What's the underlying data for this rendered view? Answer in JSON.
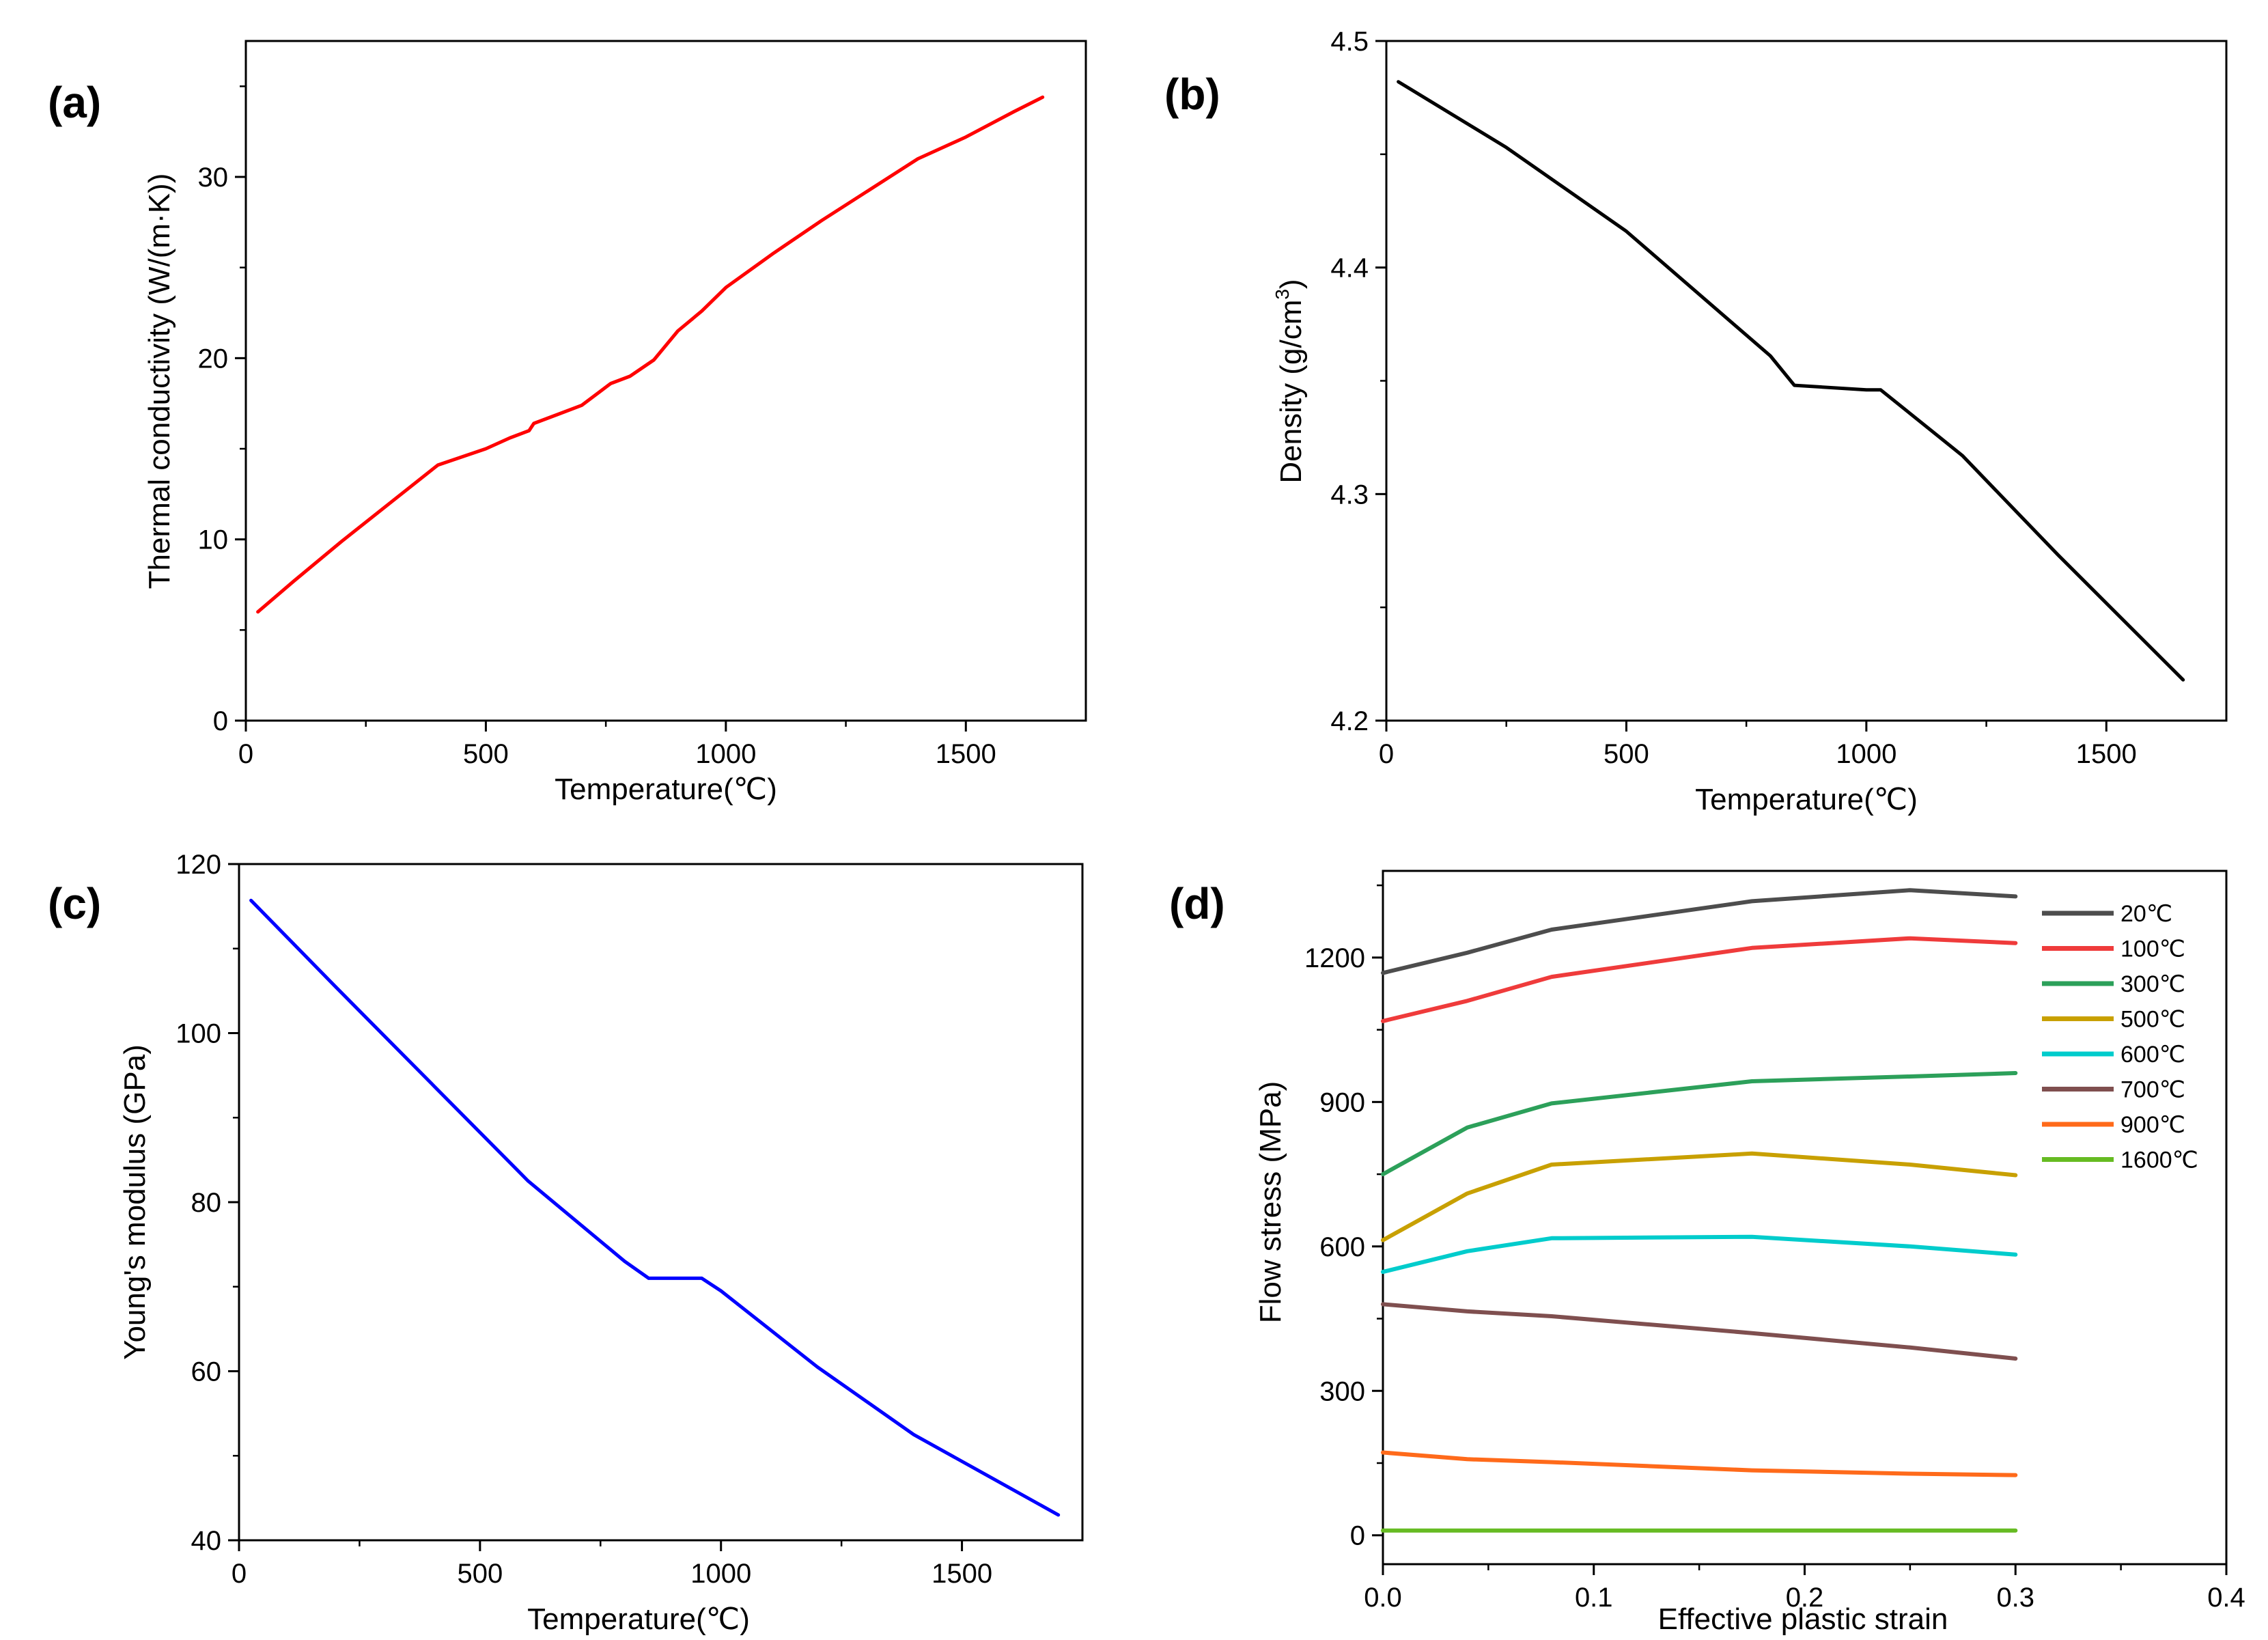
{
  "chart_data": [
    {
      "id": "a",
      "type": "line",
      "panel_label": "(a)",
      "xlabel": "Temperature(℃)",
      "ylabel": "Thermal conductivity (W/(m·K))",
      "xlim": [
        0,
        1750
      ],
      "ylim": [
        0,
        37.5
      ],
      "xticks": [
        0,
        500,
        1000,
        1500
      ],
      "yticks": [
        0,
        10,
        20,
        30
      ],
      "series": [
        {
          "color": "#ff0000",
          "x": [
            25,
            100,
            200,
            300,
            400,
            500,
            550,
            590,
            600,
            650,
            700,
            740,
            760,
            800,
            850,
            900,
            950,
            1000,
            1100,
            1200,
            1300,
            1400,
            1500,
            1600,
            1660
          ],
          "y": [
            6.0,
            7.7,
            9.9,
            12.0,
            14.1,
            15.0,
            15.6,
            16.0,
            16.4,
            16.9,
            17.4,
            18.2,
            18.6,
            19.0,
            19.9,
            21.5,
            22.6,
            23.9,
            25.8,
            27.6,
            29.3,
            31.0,
            32.2,
            33.6,
            34.4
          ]
        }
      ]
    },
    {
      "id": "b",
      "type": "line",
      "panel_label": "(b)",
      "xlabel": "Temperature(℃)",
      "ylabel_main": "Density (g/cm",
      "ylabel_sup": "3",
      "ylabel_end": ")",
      "xlim": [
        0,
        1750
      ],
      "ylim": [
        4.2,
        4.5
      ],
      "xticks": [
        0,
        500,
        1000,
        1500
      ],
      "yticks": [
        4.2,
        4.3,
        4.4,
        4.5
      ],
      "series": [
        {
          "color": "#000000",
          "x": [
            25,
            250,
            500,
            800,
            850,
            1000,
            1030,
            1200,
            1400,
            1660
          ],
          "y": [
            4.482,
            4.453,
            4.416,
            4.361,
            4.348,
            4.346,
            4.346,
            4.317,
            4.273,
            4.218
          ]
        }
      ]
    },
    {
      "id": "c",
      "type": "line",
      "panel_label": "(c)",
      "xlabel": "Temperature(℃)",
      "ylabel": "Young's modulus (GPa)",
      "xlim": [
        0,
        1750
      ],
      "ylim": [
        40,
        120
      ],
      "xticks": [
        0,
        500,
        1000,
        1500
      ],
      "yticks": [
        40,
        60,
        80,
        100,
        120
      ],
      "series": [
        {
          "color": "#0000ff",
          "x": [
            25,
            200,
            400,
            600,
            800,
            850,
            960,
            1000,
            1200,
            1400,
            1700
          ],
          "y": [
            115.7,
            105.5,
            94.0,
            82.5,
            73.0,
            71.0,
            71.0,
            69.5,
            60.5,
            52.5,
            43.0
          ]
        }
      ]
    },
    {
      "id": "d",
      "type": "line",
      "panel_label": "(d)",
      "xlabel": "Effective plastic strain",
      "ylabel": "Flow stress (MPa)",
      "xlim": [
        0,
        0.4
      ],
      "ylim": [
        -60,
        1380
      ],
      "xticks": [
        0.0,
        0.1,
        0.2,
        0.3,
        0.4
      ],
      "xtick_labels": [
        "0.0",
        "0.1",
        "0.2",
        "0.3",
        "0.4"
      ],
      "yticks": [
        0,
        300,
        600,
        900,
        1200
      ],
      "legend_position": "top-right",
      "series": [
        {
          "name": "20℃",
          "color": "#4d4d4d",
          "x": [
            0,
            0.04,
            0.08,
            0.175,
            0.25,
            0.3
          ],
          "y": [
            1168,
            1210,
            1258,
            1317,
            1340,
            1327
          ]
        },
        {
          "name": "100℃",
          "color": "#ef3b3b",
          "x": [
            0,
            0.04,
            0.08,
            0.175,
            0.25,
            0.3
          ],
          "y": [
            1068,
            1110,
            1160,
            1220,
            1240,
            1230
          ]
        },
        {
          "name": "300℃",
          "color": "#2ca05a",
          "x": [
            0,
            0.04,
            0.08,
            0.175,
            0.25,
            0.3
          ],
          "y": [
            750,
            847,
            897,
            943,
            953,
            960
          ]
        },
        {
          "name": "500℃",
          "color": "#c8a000",
          "x": [
            0,
            0.04,
            0.08,
            0.175,
            0.25,
            0.3
          ],
          "y": [
            613,
            710,
            770,
            793,
            770,
            748
          ]
        },
        {
          "name": "600℃",
          "color": "#00cccc",
          "x": [
            0,
            0.04,
            0.08,
            0.175,
            0.25,
            0.3
          ],
          "y": [
            547,
            590,
            617,
            620,
            600,
            583
          ]
        },
        {
          "name": "700℃",
          "color": "#7f4f4f",
          "x": [
            0,
            0.04,
            0.08,
            0.175,
            0.25,
            0.3
          ],
          "y": [
            480,
            465,
            455,
            420,
            390,
            367
          ]
        },
        {
          "name": "900℃",
          "color": "#ff6a1a",
          "x": [
            0,
            0.04,
            0.08,
            0.175,
            0.25,
            0.3
          ],
          "y": [
            172,
            158,
            152,
            135,
            128,
            125
          ]
        },
        {
          "name": "1600℃",
          "color": "#66bb22",
          "x": [
            0,
            0.04,
            0.08,
            0.175,
            0.25,
            0.3
          ],
          "y": [
            10,
            10,
            10,
            10,
            10,
            10
          ]
        }
      ]
    }
  ]
}
